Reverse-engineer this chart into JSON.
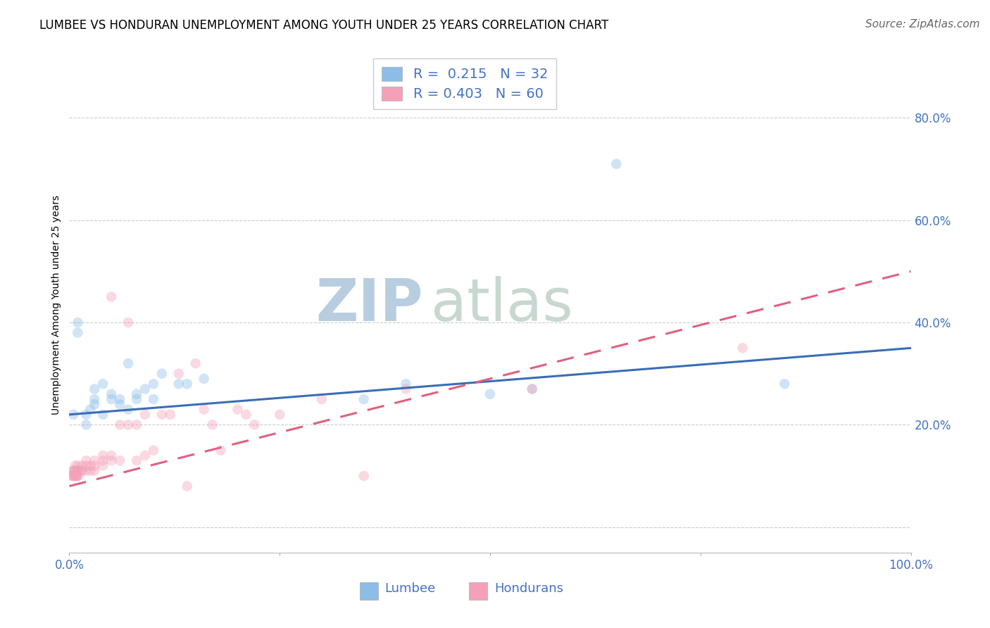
{
  "title": "LUMBEE VS HONDURAN UNEMPLOYMENT AMONG YOUTH UNDER 25 YEARS CORRELATION CHART",
  "source": "Source: ZipAtlas.com",
  "ylabel": "Unemployment Among Youth under 25 years",
  "xlim": [
    0.0,
    1.0
  ],
  "ylim": [
    -0.05,
    0.92
  ],
  "yticks": [
    0.0,
    0.2,
    0.4,
    0.6,
    0.8
  ],
  "ytick_labels": [
    "",
    "20.0%",
    "40.0%",
    "60.0%",
    "80.0%"
  ],
  "xtick_labels": [
    "0.0%",
    "",
    "",
    "",
    "100.0%"
  ],
  "lumbee_R": 0.215,
  "lumbee_N": 32,
  "honduran_R": 0.403,
  "honduran_N": 60,
  "lumbee_color": "#8BBDE8",
  "honduran_color": "#F4A0B8",
  "lumbee_line_color": "#3A6DB5",
  "honduran_line_color": "#E06080",
  "watermark_zip": "ZIP",
  "watermark_atlas": "atlas",
  "watermark_color_zip": "#B8CDE0",
  "watermark_color_atlas": "#C8D8D0",
  "background_color": "#FFFFFF",
  "grid_color": "#CCCCCC",
  "tick_color": "#4472C4",
  "lumbee_x": [
    0.005,
    0.01,
    0.01,
    0.02,
    0.02,
    0.025,
    0.03,
    0.03,
    0.03,
    0.04,
    0.04,
    0.05,
    0.05,
    0.06,
    0.06,
    0.07,
    0.07,
    0.08,
    0.08,
    0.09,
    0.1,
    0.1,
    0.11,
    0.13,
    0.14,
    0.16,
    0.35,
    0.4,
    0.5,
    0.55,
    0.65,
    0.85
  ],
  "lumbee_y": [
    0.22,
    0.4,
    0.38,
    0.2,
    0.22,
    0.23,
    0.24,
    0.27,
    0.25,
    0.28,
    0.22,
    0.25,
    0.26,
    0.24,
    0.25,
    0.23,
    0.32,
    0.25,
    0.26,
    0.27,
    0.25,
    0.28,
    0.3,
    0.28,
    0.28,
    0.29,
    0.25,
    0.28,
    0.26,
    0.27,
    0.71,
    0.28
  ],
  "honduran_x": [
    0.003,
    0.004,
    0.004,
    0.005,
    0.005,
    0.006,
    0.006,
    0.007,
    0.007,
    0.008,
    0.008,
    0.009,
    0.009,
    0.01,
    0.01,
    0.01,
    0.01,
    0.015,
    0.015,
    0.015,
    0.02,
    0.02,
    0.02,
    0.025,
    0.025,
    0.03,
    0.03,
    0.03,
    0.04,
    0.04,
    0.04,
    0.05,
    0.05,
    0.05,
    0.06,
    0.06,
    0.07,
    0.07,
    0.08,
    0.08,
    0.09,
    0.09,
    0.1,
    0.11,
    0.12,
    0.13,
    0.14,
    0.15,
    0.16,
    0.17,
    0.18,
    0.2,
    0.21,
    0.22,
    0.25,
    0.3,
    0.35,
    0.4,
    0.55,
    0.8
  ],
  "honduran_y": [
    0.1,
    0.11,
    0.1,
    0.1,
    0.11,
    0.1,
    0.11,
    0.1,
    0.12,
    0.11,
    0.1,
    0.11,
    0.1,
    0.1,
    0.11,
    0.12,
    0.1,
    0.11,
    0.11,
    0.12,
    0.11,
    0.12,
    0.13,
    0.11,
    0.12,
    0.12,
    0.13,
    0.11,
    0.12,
    0.13,
    0.14,
    0.13,
    0.14,
    0.45,
    0.13,
    0.2,
    0.2,
    0.4,
    0.13,
    0.2,
    0.14,
    0.22,
    0.15,
    0.22,
    0.22,
    0.3,
    0.08,
    0.32,
    0.23,
    0.2,
    0.15,
    0.23,
    0.22,
    0.2,
    0.22,
    0.25,
    0.1,
    0.27,
    0.27,
    0.35
  ],
  "lumbee_trendline": [
    0.22,
    0.35
  ],
  "honduran_trendline": [
    0.08,
    0.5
  ],
  "title_fontsize": 12,
  "axis_label_fontsize": 10,
  "tick_fontsize": 12,
  "legend_fontsize": 14,
  "source_fontsize": 11,
  "watermark_fontsize": 60,
  "marker_size": 110,
  "marker_alpha": 0.4,
  "line_width": 2.2
}
